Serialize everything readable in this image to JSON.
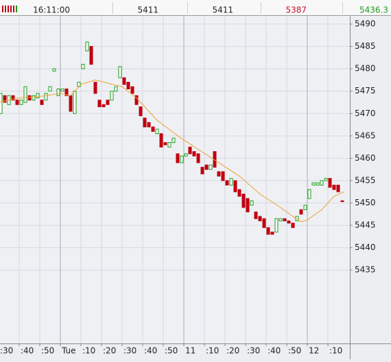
{
  "header": {
    "time": "16:11:00",
    "values": [
      "5411",
      "5411",
      "5387",
      "5436.3"
    ],
    "value_colors": [
      "#222222",
      "#222222",
      "#c8102e",
      "#1a9a1a"
    ]
  },
  "chart_data": {
    "type": "candlestick",
    "x": [
      1,
      3,
      5,
      7,
      9,
      11,
      13,
      15,
      17,
      19,
      21,
      23,
      25,
      27,
      29,
      31,
      33,
      35,
      37,
      39,
      41,
      43,
      45,
      47,
      49,
      51,
      53,
      55,
      57,
      59,
      61,
      63,
      65,
      67,
      69,
      71,
      73,
      75,
      77,
      79,
      81,
      83,
      85,
      87,
      89,
      91,
      93,
      95,
      97,
      99,
      101,
      103,
      105,
      107,
      109,
      111,
      113,
      115,
      117,
      119,
      121,
      123,
      125,
      127,
      129,
      131,
      133,
      135,
      137,
      139,
      141,
      143,
      145,
      147,
      149,
      151,
      153,
      155,
      157,
      159,
      161,
      163,
      165,
      167
    ],
    "open": [
      5470,
      5474,
      5472,
      5474,
      5473,
      5472,
      5472.5,
      5474,
      5473,
      5473.5,
      5473,
      5473,
      5475,
      5479.5,
      5474,
      5475,
      5475.5,
      5474,
      5470,
      5476,
      5480,
      5484,
      5485,
      5477,
      5473,
      5472,
      5473,
      5473,
      5475,
      5478,
      5478,
      5477,
      5476,
      5474,
      5471.5,
      5469,
      5468,
      5467,
      5465.5,
      5465.5,
      5463.5,
      5462.5,
      5463.5,
      5461,
      5459,
      5460.5,
      5462.5,
      5461.5,
      5461,
      5458,
      5458.5,
      5457.5,
      5461.5,
      5457,
      5457,
      5455,
      5454,
      5455,
      5453,
      5452,
      5451,
      5449.5,
      5448,
      5447,
      5446.5,
      5444.5,
      5443.5,
      5443.5,
      5446,
      5446.5,
      5446,
      5445.5,
      5446,
      5448.5,
      5448.5,
      5451,
      5454,
      5454,
      5454,
      5455,
      5455.5,
      5454,
      5454,
      5450.5
    ],
    "close": [
      5474.5,
      5472.5,
      5474,
      5473,
      5472,
      5473,
      5476,
      5473,
      5474,
      5474.5,
      5472,
      5474.5,
      5476,
      5480,
      5475.5,
      5475.5,
      5474,
      5470.5,
      5475,
      5477,
      5481,
      5486,
      5481,
      5474.5,
      5471.5,
      5471.5,
      5472,
      5475,
      5476,
      5480.5,
      5476.5,
      5475.5,
      5474.5,
      5472,
      5469.5,
      5467,
      5467,
      5466,
      5466.5,
      5462.5,
      5463,
      5463.5,
      5464.5,
      5459,
      5460.5,
      5461,
      5461,
      5460.5,
      5459,
      5456.5,
      5457.5,
      5458.5,
      5458,
      5456,
      5455,
      5454,
      5455.5,
      5452.5,
      5451.5,
      5449,
      5448,
      5450.5,
      5446.5,
      5446,
      5444.5,
      5443,
      5443,
      5446.5,
      5446.5,
      5446,
      5445.5,
      5444.5,
      5447,
      5447.5,
      5449.5,
      5453,
      5454.5,
      5454.5,
      5455,
      5455.5,
      5453.5,
      5453,
      5452.5,
      5450.3
    ],
    "up_color": "#1a9a1a",
    "down_color": "#c00010",
    "ma": {
      "color": "#f0a030",
      "x": [
        0,
        10,
        20,
        30,
        35,
        40,
        47,
        53,
        60,
        67,
        77,
        87,
        97,
        107,
        117,
        127,
        137,
        143,
        147,
        150,
        157,
        163,
        168
      ],
      "values": [
        5472.5,
        5473.5,
        5473.8,
        5474.5,
        5474,
        5476.5,
        5477.5,
        5476.8,
        5476,
        5473.5,
        5468.5,
        5465,
        5462,
        5459,
        5456,
        5452,
        5449,
        5447,
        5445.8,
        5446.2,
        5448.5,
        5451.5,
        5452.5
      ]
    },
    "xlim": [
      0,
      170
    ],
    "ylim": [
      5418.6,
      5492
    ],
    "yticks": [
      5435,
      5440,
      5445,
      5450,
      5455,
      5460,
      5465,
      5470,
      5475,
      5480,
      5485,
      5490
    ],
    "xticks": [
      {
        "value": 0,
        "label": ":30"
      },
      {
        "value": 10,
        "label": ":40"
      },
      {
        "value": 20,
        "label": ":50"
      },
      {
        "value": 30,
        "label": "Tue"
      },
      {
        "value": 40,
        "label": ":10"
      },
      {
        "value": 50,
        "label": ":20"
      },
      {
        "value": 60,
        "label": ":30"
      },
      {
        "value": 70,
        "label": ":40"
      },
      {
        "value": 80,
        "label": ":50"
      },
      {
        "value": 90,
        "label": "11"
      },
      {
        "value": 100,
        "label": ":10"
      },
      {
        "value": 110,
        "label": ":20"
      },
      {
        "value": 120,
        "label": ":30"
      },
      {
        "value": 130,
        "label": ":40"
      },
      {
        "value": 140,
        "label": ":50"
      },
      {
        "value": 150,
        "label": "12"
      },
      {
        "value": 160,
        "label": ":10"
      }
    ],
    "grid": true
  }
}
